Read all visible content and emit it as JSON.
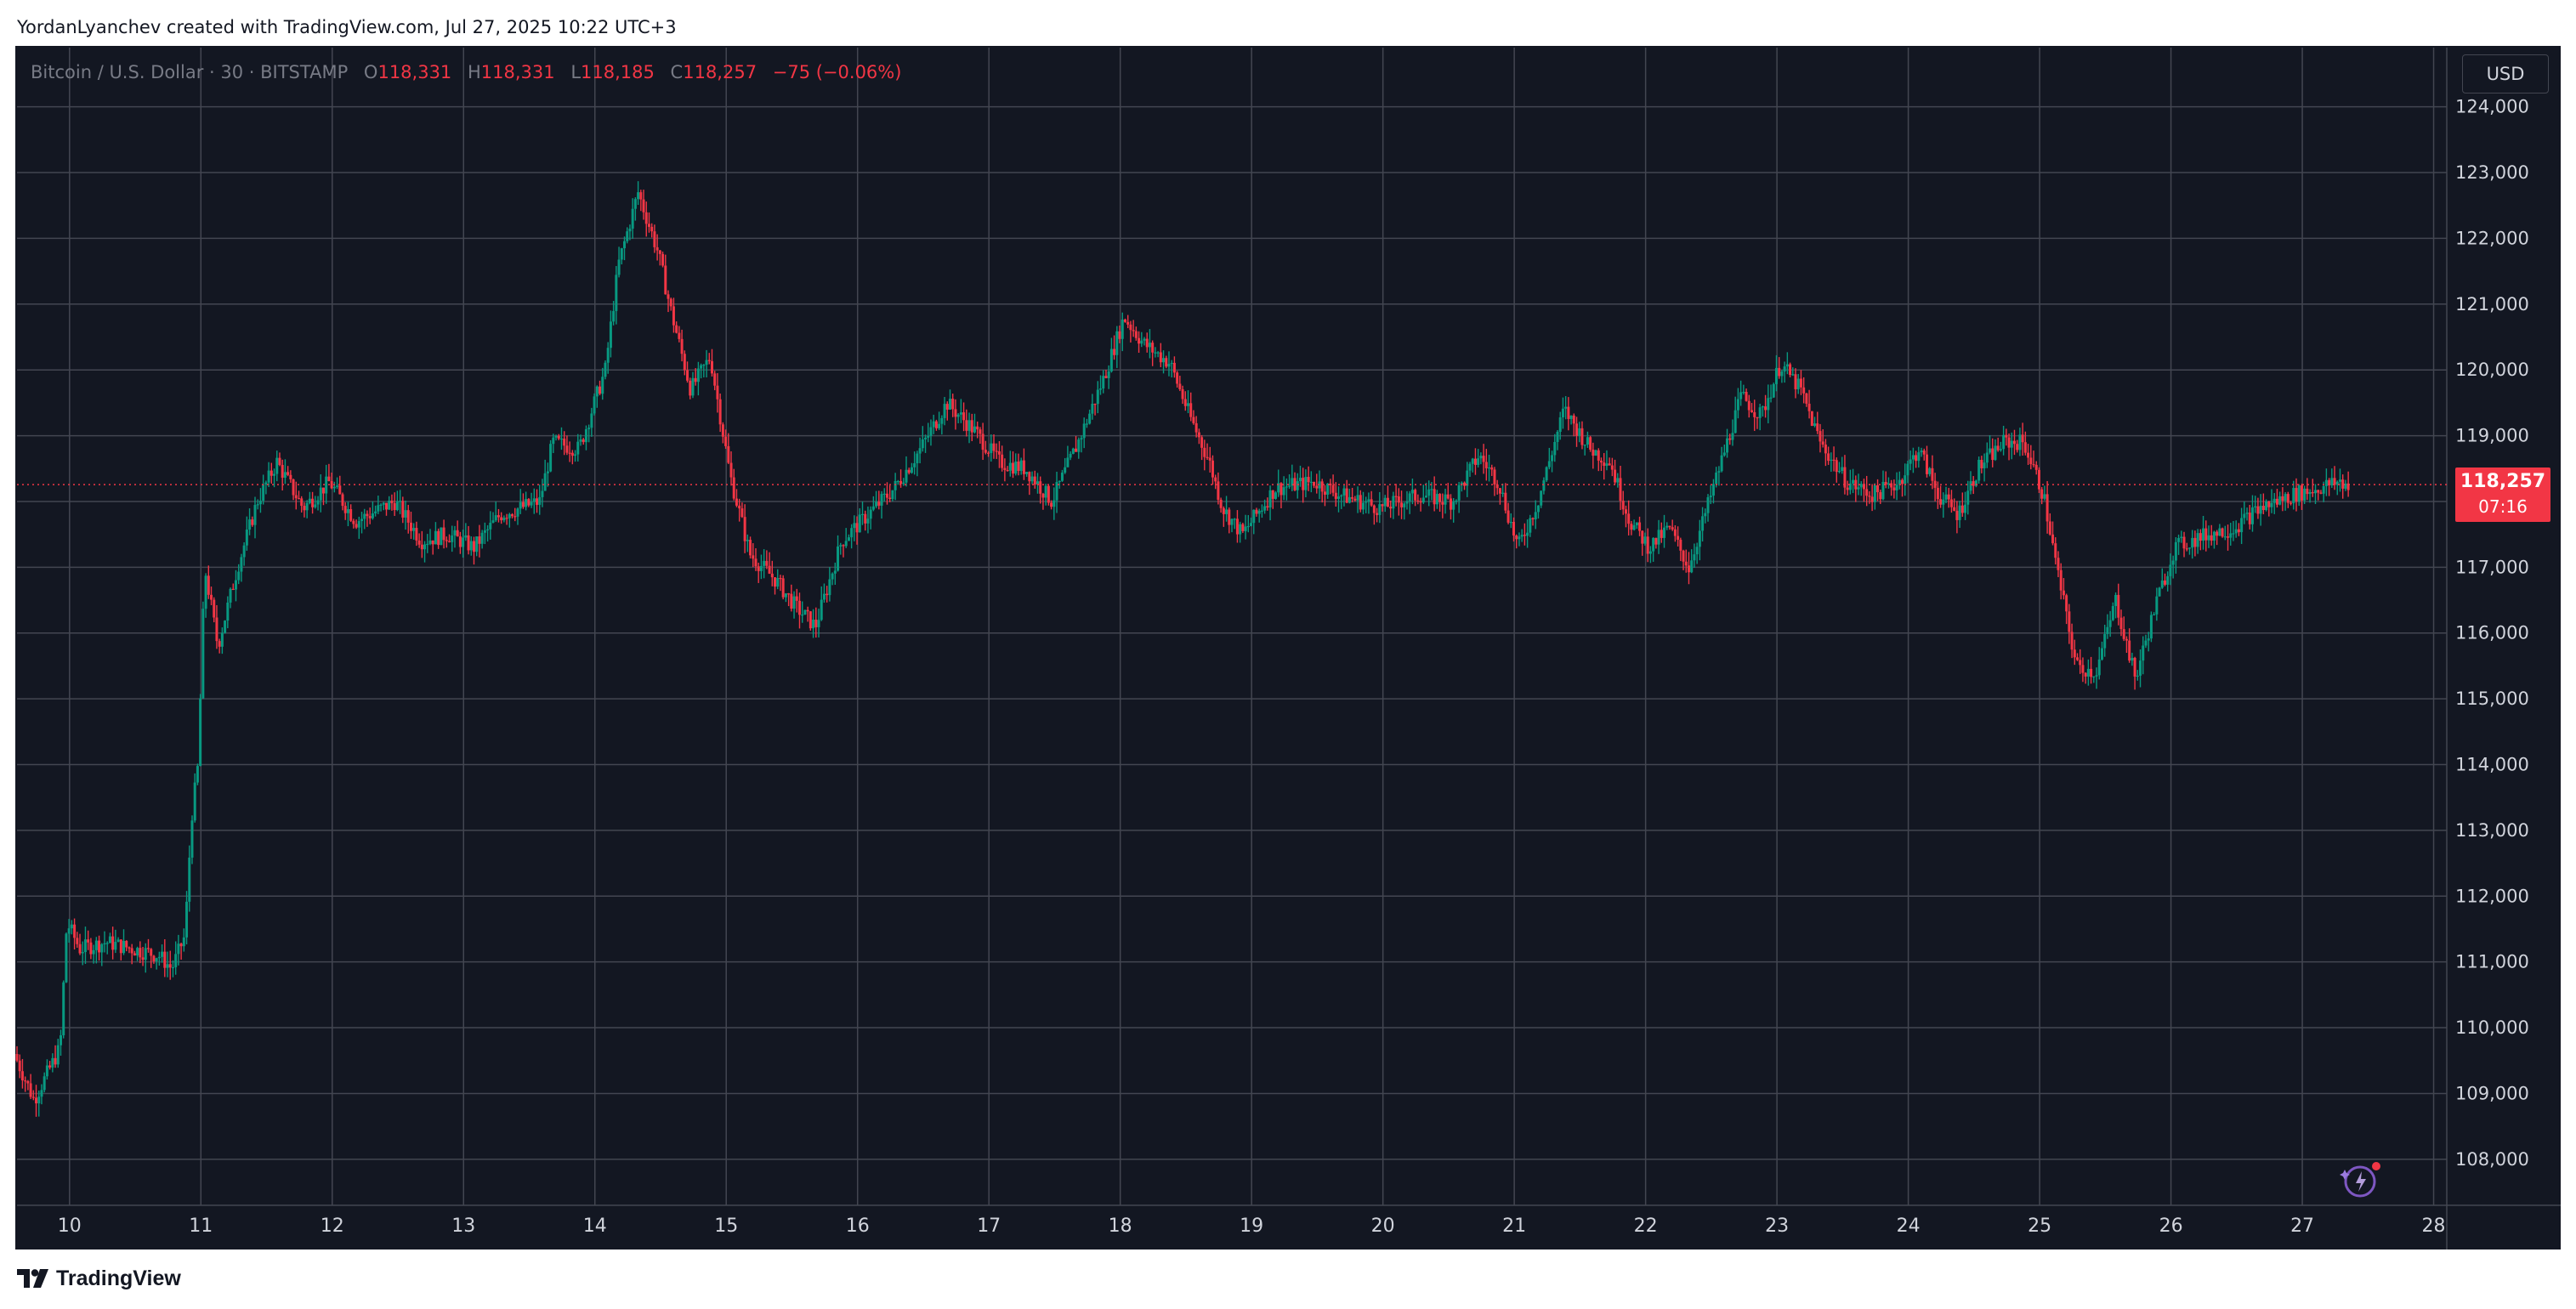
{
  "header": {
    "attribution": "YordanLyanchev created with TradingView.com, Jul 27, 2025 10:22 UTC+3"
  },
  "legend": {
    "symbol": "Bitcoin / U.S. Dollar · 30 · BITSTAMP",
    "o_label": "O",
    "o_value": "118,331",
    "h_label": "H",
    "h_value": "118,331",
    "l_label": "L",
    "l_value": "118,185",
    "c_label": "C",
    "c_value": "118,257",
    "change": "−75 (−0.06%)"
  },
  "currency_button": "USD",
  "price_tag": {
    "price": "118,257",
    "countdown": "07:16"
  },
  "footer": {
    "brand": "TradingView"
  },
  "colors": {
    "background": "#131722",
    "grid": "#434651",
    "up": "#089981",
    "down": "#f23645",
    "axis_text": "#d1d4dc",
    "legend_text": "#787b86"
  },
  "chart_data": {
    "type": "candlestick",
    "interval": "30",
    "exchange": "BITSTAMP",
    "current_price": 118257,
    "x_tick_labels": [
      "10",
      "11",
      "12",
      "13",
      "14",
      "15",
      "16",
      "17",
      "18",
      "19",
      "20",
      "21",
      "22",
      "23",
      "24",
      "25",
      "26",
      "27",
      "28"
    ],
    "x_range_days": [
      9.6,
      28.1
    ],
    "y_tick_values": [
      108000,
      109000,
      110000,
      111000,
      112000,
      113000,
      114000,
      115000,
      116000,
      117000,
      118000,
      119000,
      120000,
      121000,
      122000,
      123000,
      124000
    ],
    "y_tick_labels": [
      "108,000",
      "109,000",
      "110,000",
      "111,000",
      "112,000",
      "113,000",
      "114,000",
      "115,000",
      "116,000",
      "117,000",
      "118,000",
      "119,000",
      "120,000",
      "121,000",
      "122,000",
      "123,000",
      "124,000"
    ],
    "ylim": [
      107300,
      124900
    ],
    "grid": true,
    "price_path": [
      [
        9.6,
        109600
      ],
      [
        9.75,
        108900
      ],
      [
        9.95,
        109700
      ],
      [
        10.0,
        111600
      ],
      [
        10.1,
        111200
      ],
      [
        10.3,
        111300
      ],
      [
        10.5,
        111200
      ],
      [
        10.7,
        111100
      ],
      [
        10.8,
        110900
      ],
      [
        10.9,
        111400
      ],
      [
        10.95,
        113200
      ],
      [
        11.0,
        114000
      ],
      [
        11.05,
        117000
      ],
      [
        11.15,
        115800
      ],
      [
        11.3,
        117000
      ],
      [
        11.45,
        118000
      ],
      [
        11.6,
        118600
      ],
      [
        11.8,
        117900
      ],
      [
        12.0,
        118300
      ],
      [
        12.2,
        117700
      ],
      [
        12.5,
        118000
      ],
      [
        12.7,
        117400
      ],
      [
        12.9,
        117500
      ],
      [
        13.1,
        117300
      ],
      [
        13.3,
        117800
      ],
      [
        13.6,
        118000
      ],
      [
        13.7,
        118900
      ],
      [
        13.9,
        118800
      ],
      [
        14.1,
        120000
      ],
      [
        14.2,
        121600
      ],
      [
        14.35,
        122700
      ],
      [
        14.5,
        121800
      ],
      [
        14.6,
        120900
      ],
      [
        14.75,
        119700
      ],
      [
        14.9,
        120200
      ],
      [
        15.05,
        118400
      ],
      [
        15.2,
        117200
      ],
      [
        15.4,
        116800
      ],
      [
        15.55,
        116400
      ],
      [
        15.7,
        116100
      ],
      [
        15.9,
        117400
      ],
      [
        16.1,
        117800
      ],
      [
        16.3,
        118200
      ],
      [
        16.5,
        118800
      ],
      [
        16.7,
        119500
      ],
      [
        16.9,
        119100
      ],
      [
        17.1,
        118600
      ],
      [
        17.3,
        118500
      ],
      [
        17.5,
        118000
      ],
      [
        17.7,
        118900
      ],
      [
        17.9,
        119900
      ],
      [
        18.05,
        120800
      ],
      [
        18.2,
        120400
      ],
      [
        18.4,
        120100
      ],
      [
        18.55,
        119300
      ],
      [
        18.7,
        118600
      ],
      [
        18.8,
        117900
      ],
      [
        18.95,
        117500
      ],
      [
        19.2,
        118200
      ],
      [
        19.5,
        118300
      ],
      [
        19.7,
        118100
      ],
      [
        20.0,
        117900
      ],
      [
        20.3,
        118100
      ],
      [
        20.55,
        118000
      ],
      [
        20.75,
        118700
      ],
      [
        20.9,
        118300
      ],
      [
        21.05,
        117300
      ],
      [
        21.2,
        118000
      ],
      [
        21.4,
        119400
      ],
      [
        21.6,
        118800
      ],
      [
        21.75,
        118600
      ],
      [
        21.9,
        117700
      ],
      [
        22.05,
        117300
      ],
      [
        22.2,
        117600
      ],
      [
        22.35,
        117000
      ],
      [
        22.55,
        118300
      ],
      [
        22.75,
        119600
      ],
      [
        22.9,
        119300
      ],
      [
        23.05,
        120100
      ],
      [
        23.2,
        119700
      ],
      [
        23.35,
        118900
      ],
      [
        23.55,
        118300
      ],
      [
        23.75,
        118100
      ],
      [
        23.95,
        118300
      ],
      [
        24.1,
        118800
      ],
      [
        24.25,
        118100
      ],
      [
        24.4,
        117800
      ],
      [
        24.55,
        118500
      ],
      [
        24.75,
        118900
      ],
      [
        24.9,
        118900
      ],
      [
        25.05,
        118100
      ],
      [
        25.15,
        117000
      ],
      [
        25.3,
        115500
      ],
      [
        25.45,
        115400
      ],
      [
        25.6,
        116500
      ],
      [
        25.75,
        115300
      ],
      [
        25.9,
        116400
      ],
      [
        26.05,
        117300
      ],
      [
        26.3,
        117500
      ],
      [
        26.5,
        117600
      ],
      [
        26.7,
        117900
      ],
      [
        26.95,
        118100
      ],
      [
        27.15,
        118200
      ],
      [
        27.3,
        118300
      ],
      [
        27.35,
        118257
      ]
    ]
  }
}
